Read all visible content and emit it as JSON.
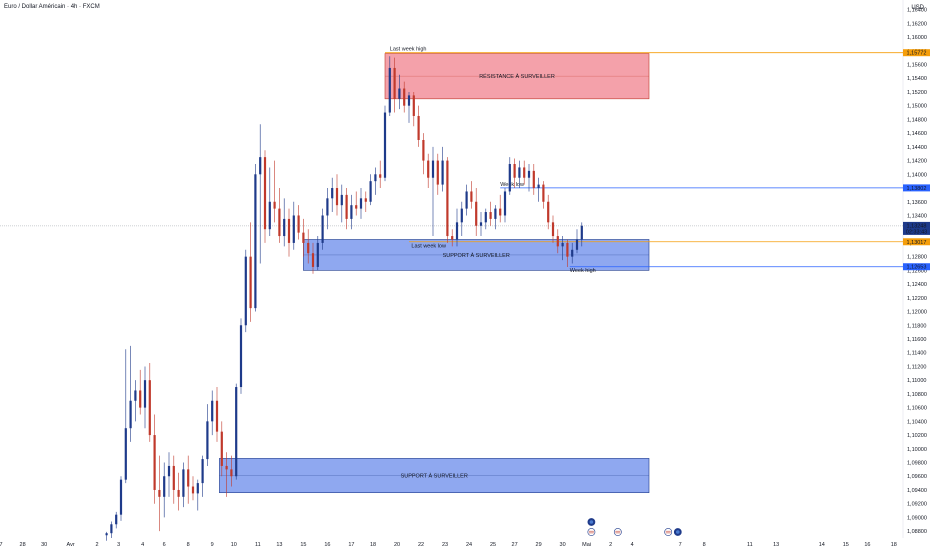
{
  "header": {
    "title": "Euro / Dollar Américain · 4h · FXCM",
    "currency": "USD"
  },
  "colors": {
    "bull": "#1e3a8a",
    "bear": "#c0392b",
    "resistance_fill": "#f4a1aa",
    "support_fill": "#8fa8f0",
    "orange": "#f59e0b",
    "blue": "#2962ff"
  },
  "chart_data": {
    "type": "candlestick",
    "ylim": [
      1.087,
      1.1654
    ],
    "y_ticks": [
      "1,16400",
      "1,16200",
      "1,16000",
      "1,15800",
      "1,15600",
      "1,15400",
      "1,15200",
      "1,15000",
      "1,14800",
      "1,14600",
      "1,14400",
      "1,14200",
      "1,14000",
      "1,13800",
      "1,13600",
      "1,13400",
      "1,13200",
      "1,13000",
      "1,12800",
      "1,12600",
      "1,12400",
      "1,12200",
      "1,12000",
      "1,11800",
      "1,11600",
      "1,11400",
      "1,11200",
      "1,11000",
      "1,10800",
      "1,10600",
      "1,10400",
      "1,10200",
      "1,10000",
      "1,09800",
      "1,09600",
      "1,09400",
      "1,09200",
      "1,09000",
      "1,08800"
    ],
    "x_ticks": [
      {
        "label": "7",
        "i": 0
      },
      {
        "label": "28",
        "i": 9
      },
      {
        "label": "30",
        "i": 18
      },
      {
        "label": "Avr",
        "i": 29
      },
      {
        "label": "2",
        "i": 40
      },
      {
        "label": "3",
        "i": 49
      },
      {
        "label": "4",
        "i": 59
      },
      {
        "label": "6",
        "i": 68
      },
      {
        "label": "8",
        "i": 78
      },
      {
        "label": "9",
        "i": 88
      },
      {
        "label": "10",
        "i": 97
      },
      {
        "label": "11",
        "i": 107
      },
      {
        "label": "13",
        "i": 116
      },
      {
        "label": "15",
        "i": 126
      },
      {
        "label": "16",
        "i": 136
      },
      {
        "label": "17",
        "i": 146
      },
      {
        "label": "18",
        "i": 155
      },
      {
        "label": "20",
        "i": 165
      },
      {
        "label": "22",
        "i": 175
      },
      {
        "label": "23",
        "i": 185
      },
      {
        "label": "24",
        "i": 195
      },
      {
        "label": "25",
        "i": 205
      },
      {
        "label": "27",
        "i": 214
      },
      {
        "label": "29",
        "i": 224
      },
      {
        "label": "30",
        "i": 234
      },
      {
        "label": "Mai",
        "i": 244
      },
      {
        "label": "2",
        "i": 254
      },
      {
        "label": "4",
        "i": 263
      },
      {
        "label": "7",
        "i": 283
      },
      {
        "label": "8",
        "i": 293
      },
      {
        "label": "11",
        "i": 312
      },
      {
        "label": "13",
        "i": 323
      },
      {
        "label": "14",
        "i": 342
      },
      {
        "label": "15",
        "i": 352
      },
      {
        "label": "16",
        "i": 361
      },
      {
        "label": "18",
        "i": 372
      }
    ],
    "candles": [
      {
        "i": 44,
        "o": 1.0874,
        "h": 1.0879,
        "l": 1.0866,
        "c": 1.0877
      },
      {
        "i": 46,
        "o": 1.0877,
        "h": 1.0894,
        "l": 1.087,
        "c": 1.089
      },
      {
        "i": 48,
        "o": 1.089,
        "h": 1.0908,
        "l": 1.0884,
        "c": 1.0904
      },
      {
        "i": 50,
        "o": 1.0904,
        "h": 1.096,
        "l": 1.0895,
        "c": 1.0955
      },
      {
        "i": 52,
        "o": 1.0955,
        "h": 1.1145,
        "l": 1.095,
        "c": 1.103
      },
      {
        "i": 54,
        "o": 1.103,
        "h": 1.115,
        "l": 1.101,
        "c": 1.107
      },
      {
        "i": 56,
        "o": 1.107,
        "h": 1.11,
        "l": 1.104,
        "c": 1.1085
      },
      {
        "i": 58,
        "o": 1.1085,
        "h": 1.1115,
        "l": 1.105,
        "c": 1.106
      },
      {
        "i": 60,
        "o": 1.106,
        "h": 1.112,
        "l": 1.103,
        "c": 1.11
      },
      {
        "i": 62,
        "o": 1.11,
        "h": 1.1125,
        "l": 1.101,
        "c": 1.102
      },
      {
        "i": 64,
        "o": 1.102,
        "h": 1.105,
        "l": 1.092,
        "c": 1.094
      },
      {
        "i": 66,
        "o": 1.094,
        "h": 1.099,
        "l": 1.088,
        "c": 1.093
      },
      {
        "i": 68,
        "o": 1.093,
        "h": 1.098,
        "l": 1.09,
        "c": 1.096
      },
      {
        "i": 70,
        "o": 1.096,
        "h": 1.0995,
        "l": 1.093,
        "c": 1.0975
      },
      {
        "i": 72,
        "o": 1.0975,
        "h": 1.099,
        "l": 1.092,
        "c": 1.094
      },
      {
        "i": 74,
        "o": 1.094,
        "h": 1.0965,
        "l": 1.091,
        "c": 1.093
      },
      {
        "i": 76,
        "o": 1.093,
        "h": 1.098,
        "l": 1.0915,
        "c": 1.097
      },
      {
        "i": 78,
        "o": 1.097,
        "h": 1.099,
        "l": 1.092,
        "c": 1.0945
      },
      {
        "i": 80,
        "o": 1.0945,
        "h": 1.096,
        "l": 1.0925,
        "c": 1.0935
      },
      {
        "i": 82,
        "o": 1.0935,
        "h": 1.0955,
        "l": 1.091,
        "c": 1.095
      },
      {
        "i": 84,
        "o": 1.095,
        "h": 1.099,
        "l": 1.093,
        "c": 1.0985
      },
      {
        "i": 86,
        "o": 1.0985,
        "h": 1.1065,
        "l": 1.0975,
        "c": 1.104
      },
      {
        "i": 88,
        "o": 1.104,
        "h": 1.1085,
        "l": 1.102,
        "c": 1.107
      },
      {
        "i": 90,
        "o": 1.107,
        "h": 1.109,
        "l": 1.101,
        "c": 1.1025
      },
      {
        "i": 92,
        "o": 1.1025,
        "h": 1.104,
        "l": 1.096,
        "c": 1.0975
      },
      {
        "i": 94,
        "o": 1.0975,
        "h": 1.0995,
        "l": 1.093,
        "c": 1.097
      },
      {
        "i": 96,
        "o": 1.097,
        "h": 1.099,
        "l": 1.0945,
        "c": 1.096
      },
      {
        "i": 98,
        "o": 1.096,
        "h": 1.1095,
        "l": 1.0955,
        "c": 1.109
      },
      {
        "i": 100,
        "o": 1.109,
        "h": 1.119,
        "l": 1.108,
        "c": 1.118
      },
      {
        "i": 102,
        "o": 1.118,
        "h": 1.129,
        "l": 1.117,
        "c": 1.128
      },
      {
        "i": 104,
        "o": 1.128,
        "h": 1.133,
        "l": 1.1185,
        "c": 1.1205
      },
      {
        "i": 106,
        "o": 1.1205,
        "h": 1.1415,
        "l": 1.12,
        "c": 1.14
      },
      {
        "i": 108,
        "o": 1.14,
        "h": 1.1473,
        "l": 1.127,
        "c": 1.1425
      },
      {
        "i": 110,
        "o": 1.1425,
        "h": 1.1435,
        "l": 1.13,
        "c": 1.132
      },
      {
        "i": 112,
        "o": 1.132,
        "h": 1.141,
        "l": 1.131,
        "c": 1.136
      },
      {
        "i": 114,
        "o": 1.136,
        "h": 1.142,
        "l": 1.133,
        "c": 1.135
      },
      {
        "i": 116,
        "o": 1.135,
        "h": 1.138,
        "l": 1.13,
        "c": 1.131
      },
      {
        "i": 118,
        "o": 1.131,
        "h": 1.1365,
        "l": 1.1295,
        "c": 1.1335
      },
      {
        "i": 120,
        "o": 1.1335,
        "h": 1.135,
        "l": 1.128,
        "c": 1.13
      },
      {
        "i": 122,
        "o": 1.13,
        "h": 1.136,
        "l": 1.129,
        "c": 1.134
      },
      {
        "i": 124,
        "o": 1.134,
        "h": 1.1355,
        "l": 1.1305,
        "c": 1.1315
      },
      {
        "i": 126,
        "o": 1.1315,
        "h": 1.1335,
        "l": 1.128,
        "c": 1.13
      },
      {
        "i": 128,
        "o": 1.13,
        "h": 1.132,
        "l": 1.127,
        "c": 1.1285
      },
      {
        "i": 130,
        "o": 1.1285,
        "h": 1.13,
        "l": 1.1255,
        "c": 1.1265
      },
      {
        "i": 132,
        "o": 1.1265,
        "h": 1.131,
        "l": 1.126,
        "c": 1.13
      },
      {
        "i": 134,
        "o": 1.13,
        "h": 1.135,
        "l": 1.129,
        "c": 1.134
      },
      {
        "i": 136,
        "o": 1.134,
        "h": 1.138,
        "l": 1.132,
        "c": 1.1365
      },
      {
        "i": 138,
        "o": 1.1365,
        "h": 1.1395,
        "l": 1.1345,
        "c": 1.138
      },
      {
        "i": 140,
        "o": 1.138,
        "h": 1.14,
        "l": 1.134,
        "c": 1.1355
      },
      {
        "i": 142,
        "o": 1.1355,
        "h": 1.1385,
        "l": 1.133,
        "c": 1.137
      },
      {
        "i": 144,
        "o": 1.137,
        "h": 1.138,
        "l": 1.132,
        "c": 1.1335
      },
      {
        "i": 146,
        "o": 1.1335,
        "h": 1.137,
        "l": 1.132,
        "c": 1.1355
      },
      {
        "i": 148,
        "o": 1.1355,
        "h": 1.1375,
        "l": 1.134,
        "c": 1.135
      },
      {
        "i": 150,
        "o": 1.135,
        "h": 1.138,
        "l": 1.1335,
        "c": 1.1365
      },
      {
        "i": 152,
        "o": 1.1365,
        "h": 1.1375,
        "l": 1.1345,
        "c": 1.136
      },
      {
        "i": 154,
        "o": 1.136,
        "h": 1.14,
        "l": 1.1355,
        "c": 1.139
      },
      {
        "i": 156,
        "o": 1.139,
        "h": 1.141,
        "l": 1.137,
        "c": 1.14
      },
      {
        "i": 158,
        "o": 1.14,
        "h": 1.142,
        "l": 1.138,
        "c": 1.1395
      },
      {
        "i": 160,
        "o": 1.1395,
        "h": 1.15,
        "l": 1.139,
        "c": 1.149
      },
      {
        "i": 162,
        "o": 1.149,
        "h": 1.1572,
        "l": 1.1485,
        "c": 1.1555
      },
      {
        "i": 164,
        "o": 1.1555,
        "h": 1.157,
        "l": 1.149,
        "c": 1.151
      },
      {
        "i": 166,
        "o": 1.151,
        "h": 1.1545,
        "l": 1.1495,
        "c": 1.1525
      },
      {
        "i": 168,
        "o": 1.1525,
        "h": 1.1535,
        "l": 1.149,
        "c": 1.15
      },
      {
        "i": 170,
        "o": 1.15,
        "h": 1.152,
        "l": 1.1475,
        "c": 1.1515
      },
      {
        "i": 172,
        "o": 1.1515,
        "h": 1.152,
        "l": 1.147,
        "c": 1.1485
      },
      {
        "i": 174,
        "o": 1.1485,
        "h": 1.15,
        "l": 1.144,
        "c": 1.145
      },
      {
        "i": 176,
        "o": 1.145,
        "h": 1.146,
        "l": 1.14,
        "c": 1.142
      },
      {
        "i": 178,
        "o": 1.142,
        "h": 1.143,
        "l": 1.138,
        "c": 1.1395
      },
      {
        "i": 180,
        "o": 1.1395,
        "h": 1.144,
        "l": 1.131,
        "c": 1.142
      },
      {
        "i": 182,
        "o": 1.142,
        "h": 1.143,
        "l": 1.137,
        "c": 1.1385
      },
      {
        "i": 184,
        "o": 1.1385,
        "h": 1.144,
        "l": 1.1375,
        "c": 1.142
      },
      {
        "i": 186,
        "o": 1.142,
        "h": 1.1425,
        "l": 1.13,
        "c": 1.131
      },
      {
        "i": 188,
        "o": 1.131,
        "h": 1.132,
        "l": 1.1295,
        "c": 1.1305
      },
      {
        "i": 190,
        "o": 1.1305,
        "h": 1.135,
        "l": 1.1295,
        "c": 1.133
      },
      {
        "i": 192,
        "o": 1.133,
        "h": 1.136,
        "l": 1.131,
        "c": 1.135
      },
      {
        "i": 194,
        "o": 1.135,
        "h": 1.1385,
        "l": 1.134,
        "c": 1.1375
      },
      {
        "i": 196,
        "o": 1.1375,
        "h": 1.139,
        "l": 1.135,
        "c": 1.136
      },
      {
        "i": 198,
        "o": 1.136,
        "h": 1.138,
        "l": 1.131,
        "c": 1.1325
      },
      {
        "i": 200,
        "o": 1.1325,
        "h": 1.1345,
        "l": 1.131,
        "c": 1.133
      },
      {
        "i": 202,
        "o": 1.133,
        "h": 1.135,
        "l": 1.132,
        "c": 1.1345
      },
      {
        "i": 204,
        "o": 1.1345,
        "h": 1.136,
        "l": 1.1325,
        "c": 1.1335
      },
      {
        "i": 206,
        "o": 1.1335,
        "h": 1.1355,
        "l": 1.132,
        "c": 1.135
      },
      {
        "i": 208,
        "o": 1.135,
        "h": 1.137,
        "l": 1.133,
        "c": 1.134
      },
      {
        "i": 210,
        "o": 1.134,
        "h": 1.138,
        "l": 1.133,
        "c": 1.1375
      },
      {
        "i": 212,
        "o": 1.1375,
        "h": 1.1425,
        "l": 1.137,
        "c": 1.1415
      },
      {
        "i": 214,
        "o": 1.1415,
        "h": 1.1423,
        "l": 1.138,
        "c": 1.1395
      },
      {
        "i": 216,
        "o": 1.1395,
        "h": 1.142,
        "l": 1.138,
        "c": 1.141
      },
      {
        "i": 218,
        "o": 1.141,
        "h": 1.142,
        "l": 1.1385,
        "c": 1.1395
      },
      {
        "i": 220,
        "o": 1.1395,
        "h": 1.1415,
        "l": 1.1375,
        "c": 1.1405
      },
      {
        "i": 222,
        "o": 1.1405,
        "h": 1.1415,
        "l": 1.137,
        "c": 1.138
      },
      {
        "i": 224,
        "o": 1.138,
        "h": 1.1395,
        "l": 1.136,
        "c": 1.1385
      },
      {
        "i": 226,
        "o": 1.1385,
        "h": 1.139,
        "l": 1.135,
        "c": 1.136
      },
      {
        "i": 228,
        "o": 1.136,
        "h": 1.137,
        "l": 1.132,
        "c": 1.133
      },
      {
        "i": 230,
        "o": 1.133,
        "h": 1.134,
        "l": 1.13,
        "c": 1.131
      },
      {
        "i": 232,
        "o": 1.131,
        "h": 1.132,
        "l": 1.1285,
        "c": 1.1295
      },
      {
        "i": 234,
        "o": 1.1295,
        "h": 1.131,
        "l": 1.1275,
        "c": 1.13
      },
      {
        "i": 236,
        "o": 1.13,
        "h": 1.1305,
        "l": 1.1265,
        "c": 1.128
      },
      {
        "i": 238,
        "o": 1.128,
        "h": 1.13,
        "l": 1.127,
        "c": 1.129
      },
      {
        "i": 240,
        "o": 1.129,
        "h": 1.132,
        "l": 1.1285,
        "c": 1.1305
      },
      {
        "i": 242,
        "o": 1.1305,
        "h": 1.133,
        "l": 1.1295,
        "c": 1.1325
      }
    ],
    "zones": [
      {
        "label": "RÉSISTANCE À SURVEILLER",
        "i0": 160,
        "i1": 270,
        "y_top": 1.1576,
        "y_bot": 1.151,
        "kind": "resistance"
      },
      {
        "label": "SUPPORT À SURVEILLER",
        "i0": 126,
        "i1": 270,
        "y_top": 1.1305,
        "y_bot": 1.126,
        "kind": "support"
      },
      {
        "label": "SUPPORT À SURVEILLER",
        "i0": 91,
        "i1": 270,
        "y_top": 1.0986,
        "y_bot": 1.0936,
        "kind": "support"
      }
    ],
    "levels": [
      {
        "y": 1.15772,
        "label": "Last week high",
        "badge": "1,15772",
        "color": "orange",
        "i0": 160,
        "label_i": 162
      },
      {
        "y": 1.13017,
        "label": "Last week low",
        "badge": "1,13017",
        "color": "orange",
        "i0": 170,
        "label_i": 171
      },
      {
        "y": 1.13802,
        "label": "Week low",
        "badge": "1,13802",
        "color": "blue",
        "i0": 208,
        "label_i": 208
      },
      {
        "y": 1.12653,
        "label": "Week high",
        "badge": "1,12653",
        "color": "blue",
        "i0": 237,
        "label_i": 237
      }
    ],
    "current": {
      "y": 1.13248,
      "price": "1,13248",
      "countdown": "02:33:43"
    },
    "event_icons": [
      {
        "i": 246,
        "row": 1,
        "kind": "globe"
      },
      {
        "i": 246,
        "row": 2,
        "kind": "flag"
      },
      {
        "i": 257,
        "row": 2,
        "kind": "flag"
      },
      {
        "i": 278,
        "row": 2,
        "kind": "flag"
      },
      {
        "i": 282,
        "row": 2,
        "kind": "globe"
      }
    ]
  }
}
